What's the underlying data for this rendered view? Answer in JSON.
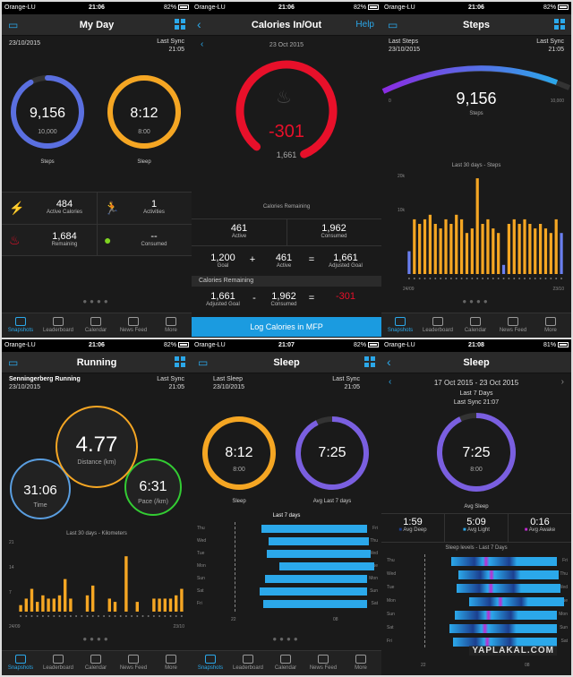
{
  "colors": {
    "accent": "#2ba8ea",
    "steps_ring": "#4b7bd8",
    "sleep_ring": "#f5a623",
    "calorie_ring": "#e8102a",
    "pace_ring": "#33cc33",
    "bars": "#f5a623"
  },
  "status": {
    "carrier": "Orange-LU",
    "battery_82": "82%",
    "battery_81": "81%",
    "t1": "21:06",
    "t2": "21:07",
    "t3": "21:08"
  },
  "tabs": [
    "Snapshots",
    "Leaderboard",
    "Calendar",
    "News Feed",
    "More"
  ],
  "p1": {
    "title": "My Day",
    "date": "23/10/2015",
    "sync_label": "Last Sync",
    "sync_time": "21:05",
    "steps": "9,156",
    "steps_goal": "10,000",
    "steps_label": "Steps",
    "sleep": "8:12",
    "sleep_goal": "8:00",
    "sleep_label": "Sleep",
    "active_cal": "484",
    "active_cal_label": "Active Calories",
    "activities": "1",
    "activities_label": "Activities",
    "remaining": "1,684",
    "remaining_label": "Remaining",
    "consumed": "--",
    "consumed_label": "Consumed"
  },
  "p2": {
    "title": "Calories In/Out",
    "help": "Help",
    "date": "23 Oct 2015",
    "value": "-301",
    "goal": "1,661",
    "remaining_label": "Calories Remaining",
    "active": "461",
    "active_label": "Active",
    "consumed": "1,962",
    "consumed_label": "Consumed",
    "goal1": "1,200",
    "goal1_label": "Goal",
    "plus": "+",
    "active2": "461",
    "active2_label": "Active",
    "eq": "=",
    "adj": "1,661",
    "adj_label": "Adjusted Goal",
    "section": "Calories Remaining",
    "adj2": "1,661",
    "adj2_label": "Adjusted Goal",
    "minus": "-",
    "cons2": "1,962",
    "cons2_label": "Consumed",
    "eq2": "=",
    "result": "-301",
    "button": "Log Calories in MFP"
  },
  "p3": {
    "title": "Steps",
    "last_label": "Last Steps",
    "date": "23/10/2015",
    "sync_label": "Last Sync",
    "sync_time": "21:05",
    "steps": "9,156",
    "steps_label": "Steps",
    "min": "0",
    "max": "10,000",
    "chart_title": "Last 30 days - Steps",
    "y1": "20k",
    "y2": "10k",
    "x_start": "24/09",
    "x_end": "23/10"
  },
  "p4": {
    "title": "Running",
    "activity": "Senningerberg Running",
    "date": "23/10/2015",
    "sync_label": "Last Sync",
    "sync_time": "21:05",
    "distance": "4.77",
    "distance_label": "Distance (km)",
    "time": "31:06",
    "time_label": "Time",
    "pace": "6:31",
    "pace_label": "Pace (/km)",
    "chart_title": "Last 30 days - Kilometers",
    "y1": "21",
    "y2": "14",
    "y3": "7",
    "x_start": "24/09",
    "x_end": "23/10"
  },
  "p5": {
    "title": "Sleep",
    "last_label": "Last Sleep",
    "date": "23/10/2015",
    "sync_label": "Last Sync",
    "sync_time": "21:05",
    "sleep": "8:12",
    "sleep_goal": "8:00",
    "sleep_label": "Sleep",
    "avg": "7:25",
    "avg_label": "Avg Last 7 days",
    "chart_title": "Last 7 days",
    "days": [
      "Thu",
      "Wed",
      "Tue",
      "Mon",
      "Sun",
      "Sat",
      "Fri"
    ],
    "right_days": [
      "Fri",
      "Thu",
      "Wed",
      "Tue",
      "Mon",
      "Sun",
      "Sat"
    ],
    "x1": "22",
    "x2": "08"
  },
  "p6": {
    "title": "Sleep",
    "range": "17 Oct 2015 - 23 Oct 2015",
    "range_label": "Last 7 Days",
    "sync": "Last Sync 21:07",
    "avg": "7:25",
    "goal": "8:00",
    "avg_label": "Avg Sleep",
    "deep": "1:59",
    "deep_label": "Avg Deep",
    "light": "5:09",
    "light_label": "Avg Light",
    "awake": "0:16",
    "awake_label": "Avg Awake",
    "chart_title": "Sleep levels - Last 7 Days",
    "days": [
      "Thu",
      "Wed",
      "Tue",
      "Mon",
      "Sun",
      "Sat",
      "Fri"
    ],
    "right_days": [
      "Fri",
      "Thu",
      "Wed",
      "Tue",
      "Mon",
      "Sun",
      "Sat"
    ],
    "x1": "22",
    "x2": "08",
    "watermark": "YAPLAKAL.COM"
  },
  "chart_data": [
    {
      "type": "bar",
      "title": "Last 30 days - Steps",
      "x_start": "24/09",
      "x_end": "23/10",
      "values": [
        5,
        12,
        11,
        12,
        13,
        11,
        10,
        12,
        11,
        13,
        12,
        9,
        10,
        21,
        11,
        12,
        10,
        9,
        2,
        11,
        12,
        11,
        12,
        11,
        10,
        11,
        10,
        9,
        12,
        9
      ],
      "ylim": [
        0,
        22
      ]
    },
    {
      "type": "bar",
      "title": "Last 30 days - Kilometers",
      "x_start": "24/09",
      "x_end": "23/10",
      "values": [
        2,
        4,
        7,
        3,
        5,
        4,
        4,
        5,
        10,
        4,
        0,
        0,
        5,
        8,
        0,
        0,
        4,
        3,
        0,
        17,
        0,
        3,
        0,
        0,
        4,
        4,
        4,
        4,
        5,
        7
      ],
      "ylim": [
        0,
        22
      ]
    }
  ]
}
